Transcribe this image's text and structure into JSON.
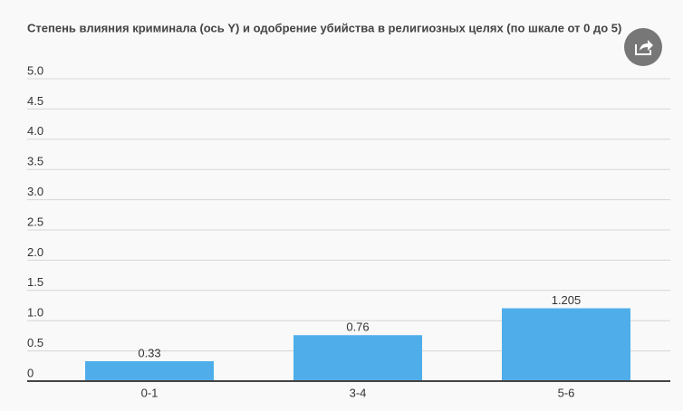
{
  "chart_data": {
    "type": "bar",
    "title": "Степень влияния криминала (ось Y) и одобрение убийства в религиозных целях (по шкале от 0 до 5)",
    "categories": [
      "0-1",
      "3-4",
      "5-6"
    ],
    "values": [
      0.33,
      0.76,
      1.205
    ],
    "color": "#4faeea",
    "ylim": [
      0,
      5
    ],
    "yticks": [
      0,
      0.5,
      {
        "value": 1,
        "label": "1.0"
      },
      1.5,
      {
        "value": 2,
        "label": "2.0"
      },
      2.5,
      {
        "value": 3,
        "label": "3.0"
      },
      3.5,
      {
        "value": 4,
        "label": "4.0"
      },
      4.5,
      {
        "value": 5,
        "label": "5.0"
      }
    ],
    "grid": true
  }
}
